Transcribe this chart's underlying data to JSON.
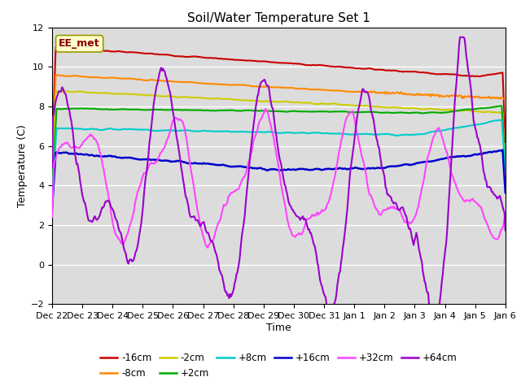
{
  "title": "Soil/Water Temperature Set 1",
  "xlabel": "Time",
  "ylabel": "Temperature (C)",
  "ylim": [
    -2,
    12
  ],
  "yticks": [
    -2,
    0,
    2,
    4,
    6,
    8,
    10,
    12
  ],
  "background_color": "#ffffff",
  "plot_bg_color": "#dcdcdc",
  "grid_color": "#ffffff",
  "annotation_text": "EE_met",
  "annotation_bg": "#ffffcc",
  "annotation_border": "#999900",
  "series": [
    {
      "label": "-16cm",
      "color": "#cc0000",
      "lw": 1.5
    },
    {
      "label": "-8cm",
      "color": "#ff8800",
      "lw": 1.5
    },
    {
      "label": "-2cm",
      "color": "#cccc00",
      "lw": 1.5
    },
    {
      "label": "+2cm",
      "color": "#00aa00",
      "lw": 1.5
    },
    {
      "label": "+8cm",
      "color": "#00cccc",
      "lw": 1.5
    },
    {
      "label": "+16cm",
      "color": "#0000cc",
      "lw": 1.8
    },
    {
      "label": "+32cm",
      "color": "#ff44ff",
      "lw": 1.5
    },
    {
      "label": "+64cm",
      "color": "#9900cc",
      "lw": 1.5
    }
  ],
  "tick_labels": [
    "Dec 22",
    "Dec 23",
    "Dec 24",
    "Dec 25",
    "Dec 26",
    "Dec 27",
    "Dec 28",
    "Dec 29",
    "Dec 30",
    "Dec 31",
    "Jan 1",
    "Jan 2",
    "Jan 3",
    "Jan 4",
    "Jan 5",
    "Jan 6"
  ]
}
